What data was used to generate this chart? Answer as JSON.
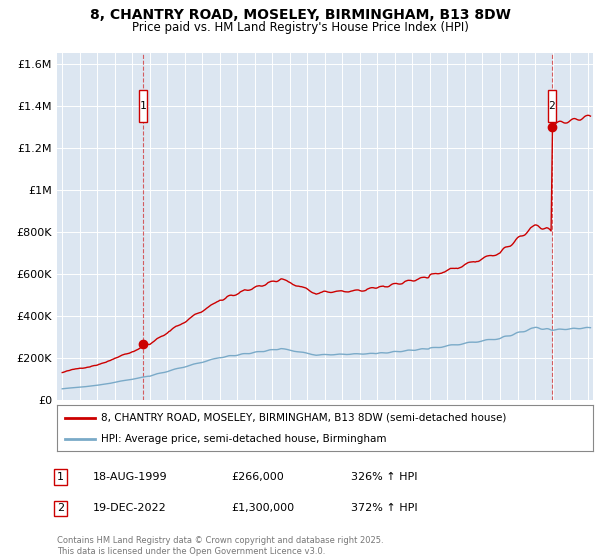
{
  "title": "8, CHANTRY ROAD, MOSELEY, BIRMINGHAM, B13 8DW",
  "subtitle": "Price paid vs. HM Land Registry's House Price Index (HPI)",
  "bg_color": "#dce6f1",
  "fig_bg": "#ffffff",
  "red_line_color": "#cc0000",
  "blue_line_color": "#7aaac8",
  "marker1_x": 1999.63,
  "marker1_y": 266000,
  "marker2_x": 2022.96,
  "marker2_y": 1300000,
  "ylim": [
    0,
    1650000
  ],
  "xlim": [
    1994.7,
    2025.3
  ],
  "yticks": [
    0,
    200000,
    400000,
    600000,
    800000,
    1000000,
    1200000,
    1400000,
    1600000
  ],
  "xticks": [
    1995,
    1996,
    1997,
    1998,
    1999,
    2000,
    2001,
    2002,
    2003,
    2004,
    2005,
    2006,
    2007,
    2008,
    2009,
    2010,
    2011,
    2012,
    2013,
    2014,
    2015,
    2016,
    2017,
    2018,
    2019,
    2020,
    2021,
    2022,
    2023,
    2024,
    2025
  ],
  "legend_label_red": "8, CHANTRY ROAD, MOSELEY, BIRMINGHAM, B13 8DW (semi-detached house)",
  "legend_label_blue": "HPI: Average price, semi-detached house, Birmingham",
  "transaction1_date": "18-AUG-1999",
  "transaction1_price": "£266,000",
  "transaction1_hpi": "326% ↑ HPI",
  "transaction2_date": "19-DEC-2022",
  "transaction2_price": "£1,300,000",
  "transaction2_hpi": "372% ↑ HPI",
  "footer": "Contains HM Land Registry data © Crown copyright and database right 2025.\nThis data is licensed under the Open Government Licence v3.0."
}
